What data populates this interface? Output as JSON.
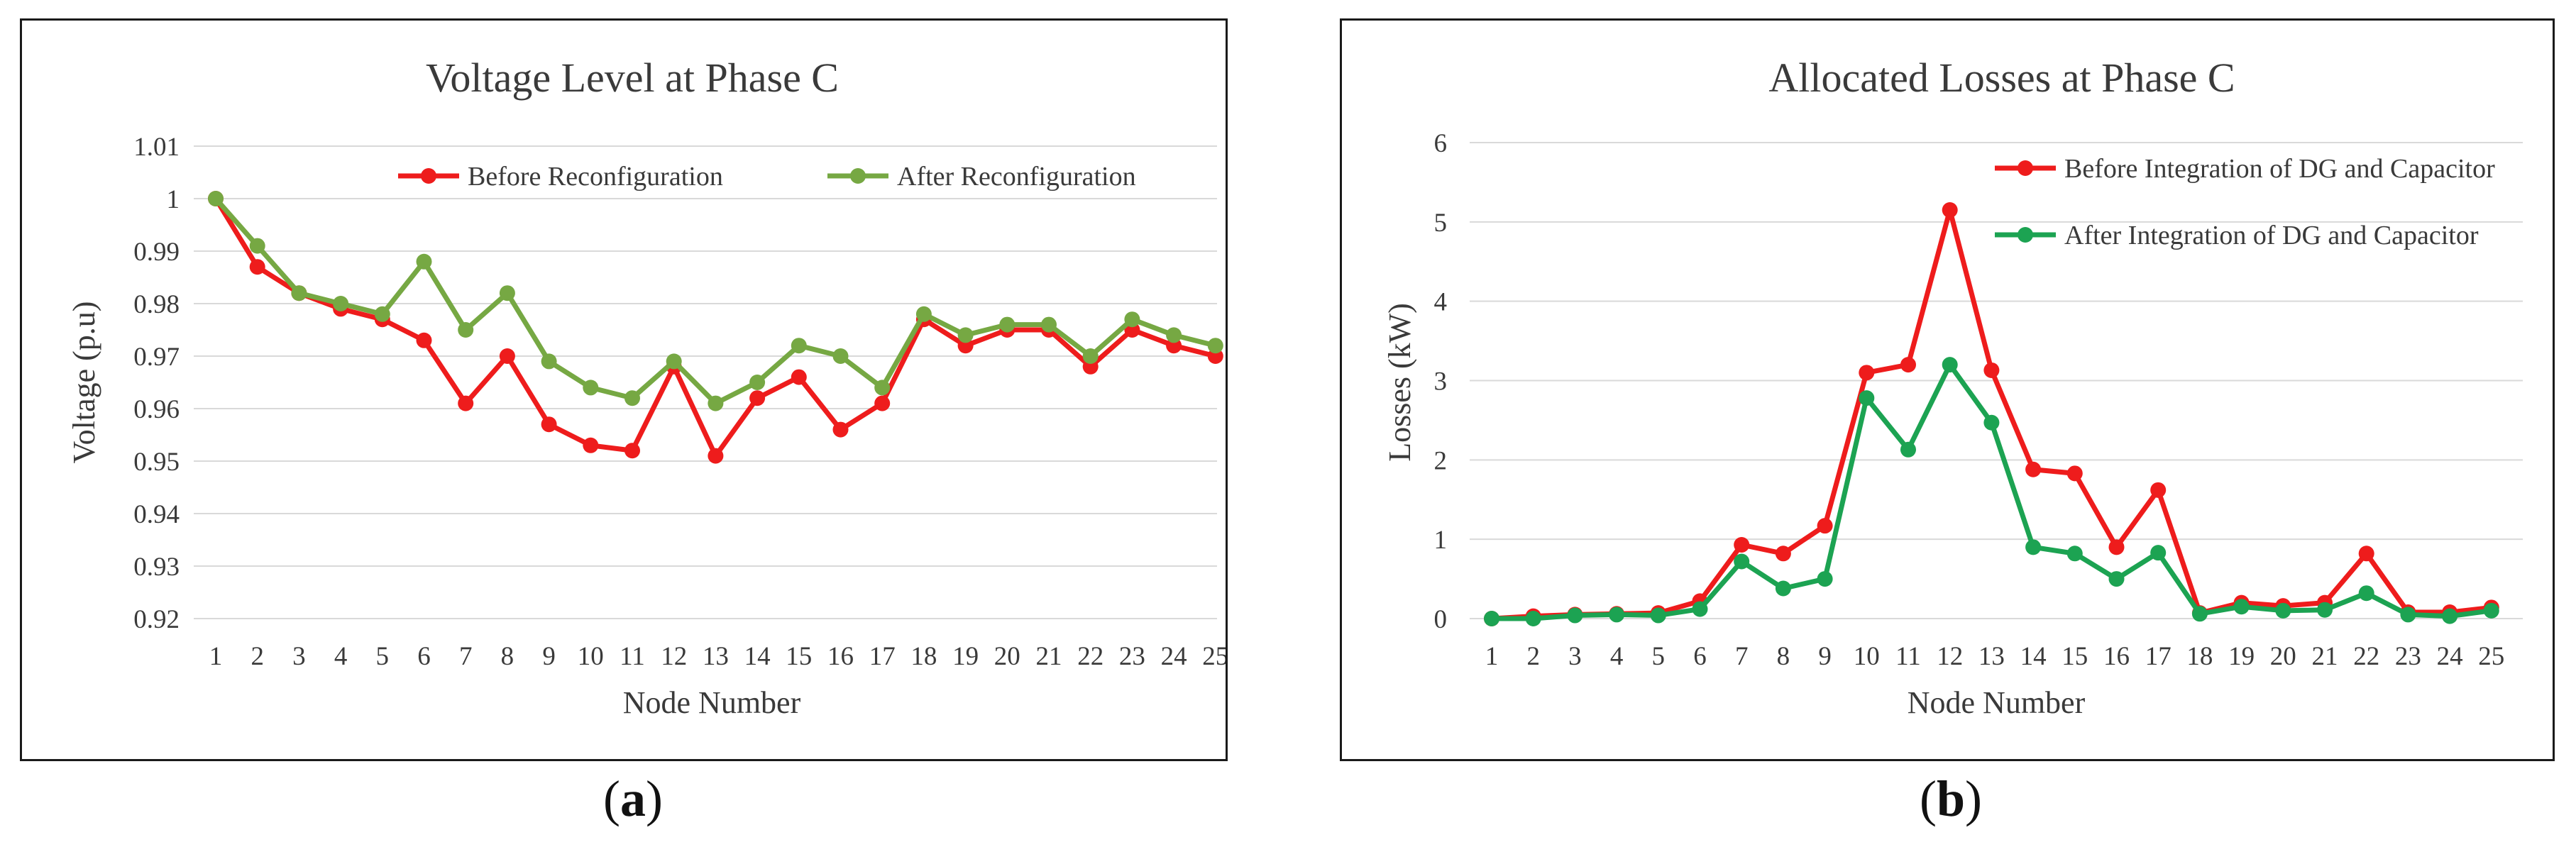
{
  "chart_data": [
    {
      "type": "line",
      "title": "Voltage Level at Phase C",
      "xlabel": "Node Number",
      "ylabel": "Voltage (p.u)",
      "ylim": [
        0.92,
        1.01
      ],
      "yticks": [
        "0.92",
        "0.93",
        "0.94",
        "0.95",
        "0.96",
        "0.97",
        "0.98",
        "0.99",
        "1",
        "1.01"
      ],
      "categories": [
        "1",
        "2",
        "3",
        "4",
        "5",
        "6",
        "7",
        "8",
        "9",
        "10",
        "11",
        "12",
        "13",
        "14",
        "15",
        "16",
        "17",
        "18",
        "19",
        "20",
        "21",
        "22",
        "23",
        "24",
        "25"
      ],
      "grid": true,
      "legend_position": "top-right",
      "series": [
        {
          "name": "Before Reconfiguration",
          "color": "#ee1c1c",
          "values": [
            1.0,
            0.987,
            0.982,
            0.979,
            0.977,
            0.973,
            0.961,
            0.97,
            0.957,
            0.953,
            0.952,
            0.968,
            0.951,
            0.962,
            0.966,
            0.956,
            0.961,
            0.977,
            0.972,
            0.975,
            0.975,
            0.968,
            0.975,
            0.972,
            0.97
          ]
        },
        {
          "name": "After Reconfiguration",
          "color": "#76a843",
          "values": [
            1.0,
            0.991,
            0.982,
            0.98,
            0.978,
            0.988,
            0.975,
            0.982,
            0.969,
            0.964,
            0.962,
            0.969,
            0.961,
            0.965,
            0.972,
            0.97,
            0.964,
            0.978,
            0.974,
            0.976,
            0.976,
            0.97,
            0.977,
            0.974,
            0.972
          ]
        }
      ]
    },
    {
      "type": "line",
      "title": "Allocated Losses at Phase C",
      "xlabel": "Node Number",
      "ylabel": "Losses (kW)",
      "ylim": [
        0,
        6
      ],
      "yticks": [
        "0",
        "1",
        "2",
        "3",
        "4",
        "5",
        "6"
      ],
      "categories": [
        "1",
        "2",
        "3",
        "4",
        "5",
        "6",
        "7",
        "8",
        "9",
        "10",
        "11",
        "12",
        "13",
        "14",
        "15",
        "16",
        "17",
        "18",
        "19",
        "20",
        "21",
        "22",
        "23",
        "24",
        "25"
      ],
      "grid": true,
      "legend_position": "top-right",
      "series": [
        {
          "name": "Before Integration of DG and Capacitor",
          "color": "#ee1c1c",
          "values": [
            0.0,
            0.03,
            0.05,
            0.06,
            0.07,
            0.22,
            0.93,
            0.82,
            1.17,
            3.1,
            3.2,
            5.15,
            3.13,
            1.88,
            1.83,
            0.9,
            1.62,
            0.07,
            0.2,
            0.16,
            0.2,
            0.82,
            0.08,
            0.08,
            0.14
          ]
        },
        {
          "name": "After Integration of DG and Capacitor",
          "color": "#1ca352",
          "values": [
            0.0,
            0.0,
            0.04,
            0.05,
            0.04,
            0.12,
            0.72,
            0.38,
            0.5,
            2.78,
            2.13,
            3.2,
            2.47,
            0.9,
            0.82,
            0.5,
            0.83,
            0.06,
            0.15,
            0.1,
            0.11,
            0.32,
            0.05,
            0.03,
            0.1
          ]
        }
      ]
    }
  ],
  "panels": {
    "a": {
      "open": "(",
      "letter": "a",
      "close": ")"
    },
    "b": {
      "open": "(",
      "letter": "b",
      "close": ")"
    }
  }
}
